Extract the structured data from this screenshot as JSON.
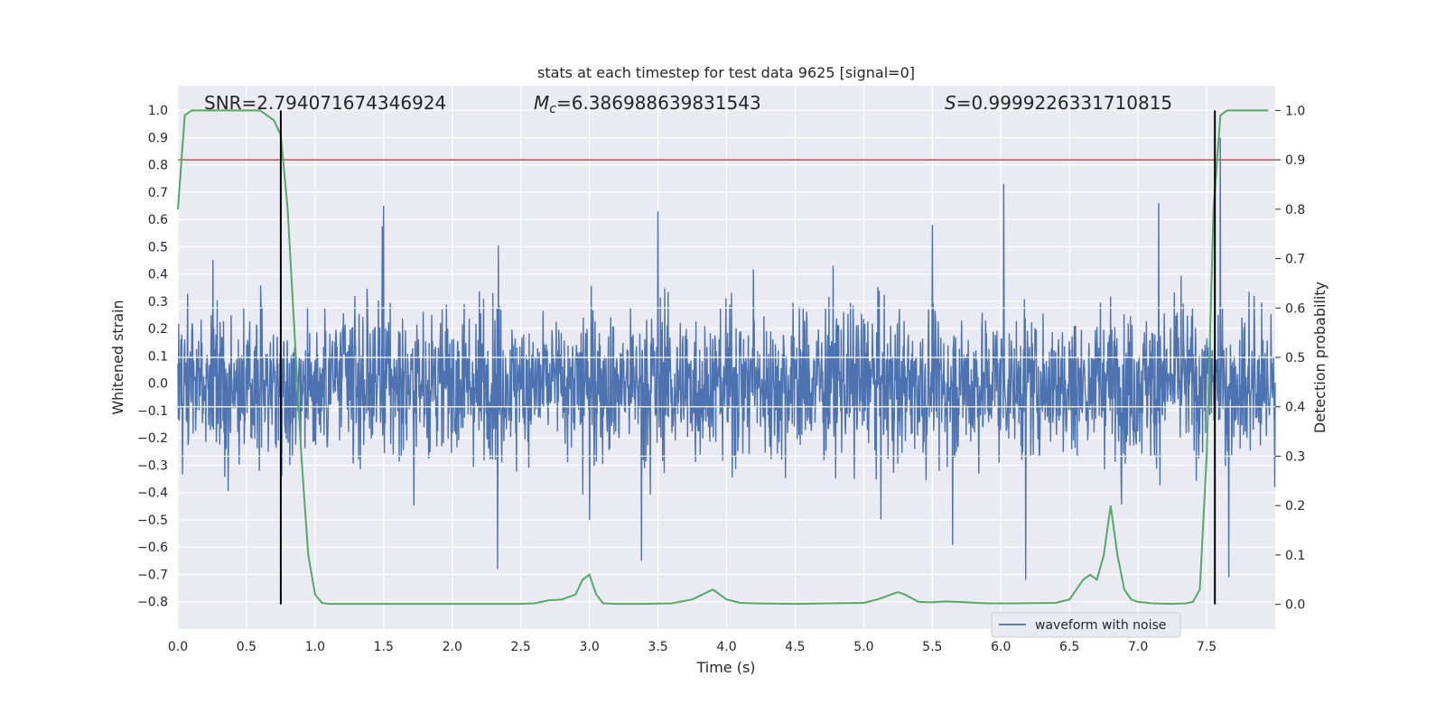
{
  "chart_data": {
    "type": "line",
    "title": "stats at each timestep for test data 9625 [signal=0]",
    "xlabel": "Time (s)",
    "ylabel": "Whitened strain",
    "y2label": "Detection probability",
    "xlim": [
      0.0,
      8.0
    ],
    "ylim": [
      -0.9,
      1.09
    ],
    "y2lim": [
      -0.05,
      1.05
    ],
    "xticks": [
      "0.0",
      "0.5",
      "1.0",
      "1.5",
      "2.0",
      "2.5",
      "3.0",
      "3.5",
      "4.0",
      "4.5",
      "5.0",
      "5.5",
      "6.0",
      "6.5",
      "7.0",
      "7.5"
    ],
    "xtick_values": [
      0.0,
      0.5,
      1.0,
      1.5,
      2.0,
      2.5,
      3.0,
      3.5,
      4.0,
      4.5,
      5.0,
      5.5,
      6.0,
      6.5,
      7.0,
      7.5
    ],
    "yticks": [
      "1.0",
      "0.9",
      "0.8",
      "0.7",
      "0.6",
      "0.5",
      "0.4",
      "0.3",
      "0.2",
      "0.1",
      "0.0",
      "−0.1",
      "−0.2",
      "−0.3",
      "−0.4",
      "−0.5",
      "−0.6",
      "−0.7",
      "−0.8"
    ],
    "ytick_values": [
      1.0,
      0.9,
      0.8,
      0.7,
      0.6,
      0.5,
      0.4,
      0.3,
      0.2,
      0.1,
      0.0,
      -0.1,
      -0.2,
      -0.3,
      -0.4,
      -0.5,
      -0.6,
      -0.7,
      -0.8
    ],
    "y2ticks": [
      "1.0",
      "0.9",
      "0.8",
      "0.7",
      "0.6",
      "0.5",
      "0.4",
      "0.3",
      "0.2",
      "0.1",
      "0.0"
    ],
    "y2tick_values": [
      1.0,
      0.9,
      0.8,
      0.7,
      0.6,
      0.5,
      0.4,
      0.3,
      0.2,
      0.1,
      0.0
    ],
    "grid": true,
    "annotations": {
      "snr": "SNR=2.794071674346924",
      "mc_symbol": "M",
      "mc_sub": "c",
      "mc_value": "=6.386988639831543",
      "s_symbol": "S",
      "s_value": "=0.9999226331710815"
    },
    "legend": {
      "label": "waveform with noise",
      "position": "lower right"
    },
    "colors": {
      "background": "#eaeaf2",
      "grid": "#ffffff",
      "waveform": "#4c72b0",
      "probability": "#55a868",
      "threshold": "#c44e52",
      "vlines": "#000000"
    },
    "threshold": 0.9,
    "vlines_x": [
      0.75,
      7.56
    ],
    "waveform": {
      "name": "waveform with noise",
      "t_range": [
        0.0,
        8.0
      ],
      "typical_abs_max": 0.3,
      "peaks": [
        {
          "t": 1.5,
          "y": 0.65
        },
        {
          "t": 2.33,
          "y": -0.68
        },
        {
          "t": 3.0,
          "y": -0.5
        },
        {
          "t": 3.38,
          "y": -0.65
        },
        {
          "t": 3.5,
          "y": 0.63
        },
        {
          "t": 5.5,
          "y": 0.58
        },
        {
          "t": 6.02,
          "y": 0.73
        },
        {
          "t": 6.18,
          "y": -0.72
        },
        {
          "t": 7.15,
          "y": 0.66
        },
        {
          "t": 7.6,
          "y": 0.9
        },
        {
          "t": 7.66,
          "y": -0.71
        }
      ]
    },
    "probability": {
      "name": "detection probability",
      "t": [
        0.0,
        0.05,
        0.1,
        0.15,
        0.2,
        0.3,
        0.4,
        0.5,
        0.6,
        0.65,
        0.7,
        0.75,
        0.8,
        0.85,
        0.9,
        0.95,
        1.0,
        1.05,
        1.1,
        1.2,
        1.3,
        1.4,
        1.5,
        1.75,
        2.0,
        2.25,
        2.5,
        2.6,
        2.7,
        2.8,
        2.9,
        2.95,
        3.0,
        3.05,
        3.1,
        3.2,
        3.4,
        3.6,
        3.75,
        3.9,
        4.0,
        4.1,
        4.2,
        4.5,
        4.75,
        5.0,
        5.1,
        5.2,
        5.25,
        5.3,
        5.4,
        5.5,
        5.6,
        5.75,
        5.9,
        6.1,
        6.4,
        6.5,
        6.55,
        6.6,
        6.65,
        6.7,
        6.75,
        6.8,
        6.85,
        6.9,
        6.95,
        7.0,
        7.1,
        7.25,
        7.35,
        7.4,
        7.45,
        7.5,
        7.55,
        7.6,
        7.65,
        7.7,
        7.8,
        7.95
      ],
      "p": [
        0.8,
        0.99,
        1.0,
        1.0,
        1.0,
        1.0,
        1.0,
        1.0,
        1.0,
        0.99,
        0.98,
        0.95,
        0.8,
        0.55,
        0.3,
        0.1,
        0.02,
        0.003,
        0.001,
        0.001,
        0.001,
        0.001,
        0.001,
        0.001,
        0.001,
        0.001,
        0.001,
        0.002,
        0.008,
        0.01,
        0.02,
        0.05,
        0.06,
        0.02,
        0.002,
        0.001,
        0.001,
        0.002,
        0.01,
        0.03,
        0.01,
        0.003,
        0.002,
        0.001,
        0.002,
        0.003,
        0.01,
        0.02,
        0.025,
        0.02,
        0.005,
        0.004,
        0.006,
        0.004,
        0.002,
        0.002,
        0.003,
        0.01,
        0.03,
        0.05,
        0.06,
        0.05,
        0.1,
        0.2,
        0.1,
        0.03,
        0.01,
        0.005,
        0.002,
        0.001,
        0.002,
        0.005,
        0.03,
        0.3,
        0.8,
        0.99,
        1.0,
        1.0,
        1.0,
        1.0
      ]
    }
  }
}
